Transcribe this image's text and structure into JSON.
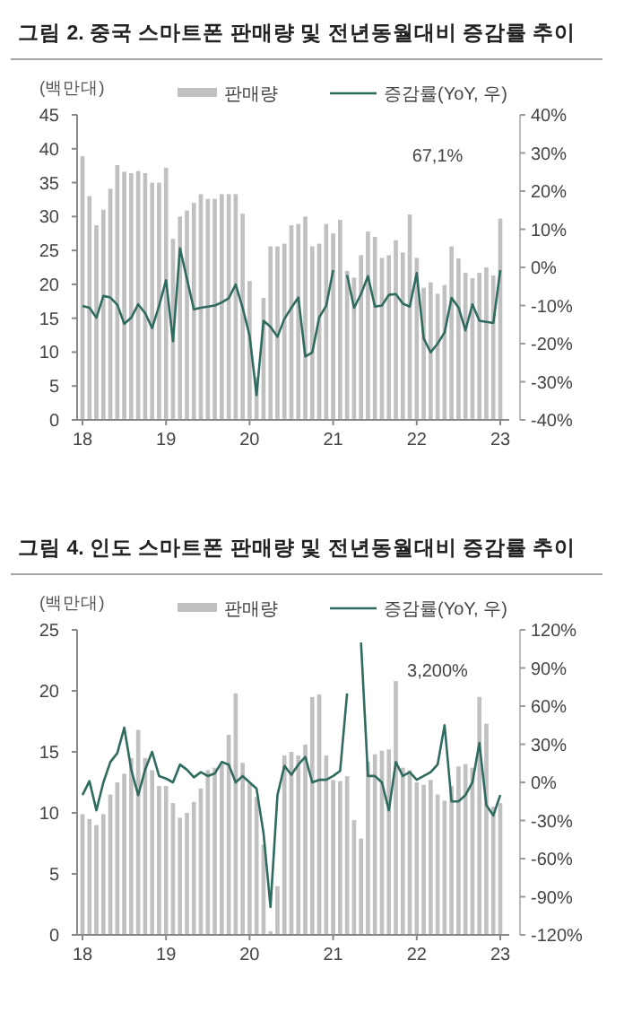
{
  "chart_data": [
    {
      "type": "bar",
      "title": "그림 2. 중국 스마트폰 판매량 및 전년동월대비 증감률 추이",
      "ylabel": "(백만대)",
      "legend": "top",
      "annotations": [
        "67,1%"
      ],
      "categories": [
        "18",
        null,
        null,
        null,
        null,
        null,
        null,
        null,
        null,
        null,
        null,
        null,
        "19",
        null,
        null,
        null,
        null,
        null,
        null,
        null,
        null,
        null,
        null,
        null,
        "20",
        null,
        null,
        null,
        null,
        null,
        null,
        null,
        null,
        null,
        null,
        null,
        "21",
        null,
        null,
        null,
        null,
        null,
        null,
        null,
        null,
        null,
        null,
        null,
        "22",
        null,
        null,
        null,
        null,
        null,
        null,
        null,
        null,
        null,
        null,
        null,
        "23"
      ],
      "ylim": [
        0,
        45
      ],
      "yticks": [
        0,
        5,
        10,
        15,
        20,
        25,
        30,
        35,
        40,
        45
      ],
      "y2lim": [
        -40,
        40
      ],
      "y2ticks": [
        {
          "value": -40,
          "label": "-40%"
        },
        {
          "value": -30,
          "label": "-30%"
        },
        {
          "value": -20,
          "label": "-20%"
        },
        {
          "value": -10,
          "label": "-10%"
        },
        {
          "value": 0,
          "label": "0%"
        },
        {
          "value": 10,
          "label": "10%"
        },
        {
          "value": 20,
          "label": "20%"
        },
        {
          "value": 30,
          "label": "30%"
        },
        {
          "value": 40,
          "label": "40%"
        }
      ],
      "series": [
        {
          "name": "판매량",
          "color": "#c0c0c0",
          "values": [
            38.9,
            33,
            28.7,
            31,
            34.1,
            37.6,
            36.6,
            36.4,
            36.7,
            36.4,
            35,
            35,
            37.2,
            26.7,
            30,
            30.9,
            32,
            33.3,
            32.6,
            32.6,
            33.3,
            33.3,
            33.3,
            30.4,
            20.5,
            6.3,
            18,
            25.6,
            25.6,
            26,
            28.7,
            28.9,
            30,
            25.6,
            26,
            28.9,
            27.5,
            29.5,
            22,
            21,
            24.3,
            27.8,
            27,
            23.9,
            24.3,
            26.5,
            24.7,
            30.3,
            23.9,
            19.5,
            20.3,
            18.6,
            19.9,
            25.6,
            23.8,
            21.7,
            20.9,
            21.7,
            22.5,
            21.3,
            29.7
          ]
        },
        {
          "name": "증감률(YoY, 우)",
          "type": "line",
          "axis": "y2",
          "color": "#2f6b5f",
          "values": [
            -10.1,
            -10.6,
            -13.2,
            -7.5,
            -7.9,
            -9.8,
            -14.8,
            -13.2,
            -9.7,
            -12,
            -15.9,
            -10.1,
            -3.4,
            -19.4,
            5,
            -3,
            -11,
            -10.6,
            -10.3,
            -10,
            -9.2,
            -8.1,
            -4.5,
            -10.6,
            -17.9,
            -33.5,
            -14,
            -15.6,
            -18.2,
            -13.5,
            -10.6,
            -7.9,
            -23.4,
            -22.3,
            -13.1,
            -10.1,
            -0.7,
            null,
            -2,
            -10.6,
            -7,
            -2.3,
            -10.3,
            -10,
            -7.2,
            -7,
            -9.5,
            -10.3,
            -1.5,
            -18.6,
            -22.3,
            -20,
            -17.1,
            -8,
            -10.5,
            -16.5,
            -9.7,
            -14,
            -14.3,
            -14.6,
            -0.7
          ]
        }
      ]
    },
    {
      "type": "bar",
      "title": "그림 4. 인도 스마트폰 판매량 및 전년동월대비 증감률 추이",
      "ylabel": "(백만대)",
      "legend": "top",
      "annotations": [
        "3,200%"
      ],
      "categories": [
        "18",
        null,
        null,
        null,
        null,
        null,
        null,
        null,
        null,
        null,
        null,
        null,
        "19",
        null,
        null,
        null,
        null,
        null,
        null,
        null,
        null,
        null,
        null,
        null,
        "20",
        null,
        null,
        null,
        null,
        null,
        null,
        null,
        null,
        null,
        null,
        null,
        "21",
        null,
        null,
        null,
        null,
        null,
        null,
        null,
        null,
        null,
        null,
        null,
        "22",
        null,
        null,
        null,
        null,
        null,
        null,
        null,
        null,
        null,
        null,
        null,
        "23"
      ],
      "ylim": [
        0,
        25
      ],
      "yticks": [
        0,
        5,
        10,
        15,
        20,
        25
      ],
      "y2lim": [
        -120,
        120
      ],
      "y2ticks": [
        {
          "value": -120,
          "label": "-120%"
        },
        {
          "value": -90,
          "label": "-90%"
        },
        {
          "value": -60,
          "label": "-60%"
        },
        {
          "value": -30,
          "label": "-30%"
        },
        {
          "value": 0,
          "label": "0%"
        },
        {
          "value": 30,
          "label": "30%"
        },
        {
          "value": 60,
          "label": "60%"
        },
        {
          "value": 90,
          "label": "90%"
        },
        {
          "value": 120,
          "label": "120%"
        }
      ],
      "series": [
        {
          "name": "판매량",
          "color": "#c0c0c0",
          "values": [
            9.9,
            9.5,
            9,
            9.9,
            11.5,
            12.5,
            13.2,
            14.5,
            16.8,
            14.5,
            13.5,
            12.2,
            12.2,
            10.8,
            9.6,
            10,
            10.9,
            12,
            13.5,
            13.7,
            14,
            16.4,
            19.8,
            14.1,
            12.4,
            11.3,
            7.4,
            0.3,
            4,
            14.7,
            15,
            14.7,
            15.6,
            19.5,
            19.7,
            14.7,
            12.7,
            12.6,
            13,
            9.4,
            7.9,
            14.2,
            14.8,
            15.1,
            15.2,
            20.8,
            13.7,
            13.5,
            12.5,
            12.3,
            12.7,
            11.5,
            11,
            12.2,
            13.8,
            14,
            13.7,
            19.5,
            17.3,
            10.5,
            10.8
          ]
        },
        {
          "name": "증감률(YoY, 우)",
          "type": "line",
          "axis": "y2",
          "color": "#2f6b5f",
          "values": [
            -10,
            1,
            -22,
            0,
            16,
            23,
            43,
            10,
            -10,
            10,
            24,
            5,
            3,
            0,
            14,
            10,
            4,
            8,
            5,
            7,
            16,
            14,
            0,
            5,
            0,
            -5,
            -40,
            -98,
            -10,
            13,
            6,
            14,
            20,
            0,
            2,
            2,
            5,
            9,
            70,
            null,
            110,
            5,
            5,
            0,
            -22,
            16,
            5,
            8,
            2,
            5,
            8,
            14,
            45,
            -15,
            -15,
            -10,
            0,
            31,
            -18,
            -26,
            -10
          ]
        }
      ]
    }
  ]
}
